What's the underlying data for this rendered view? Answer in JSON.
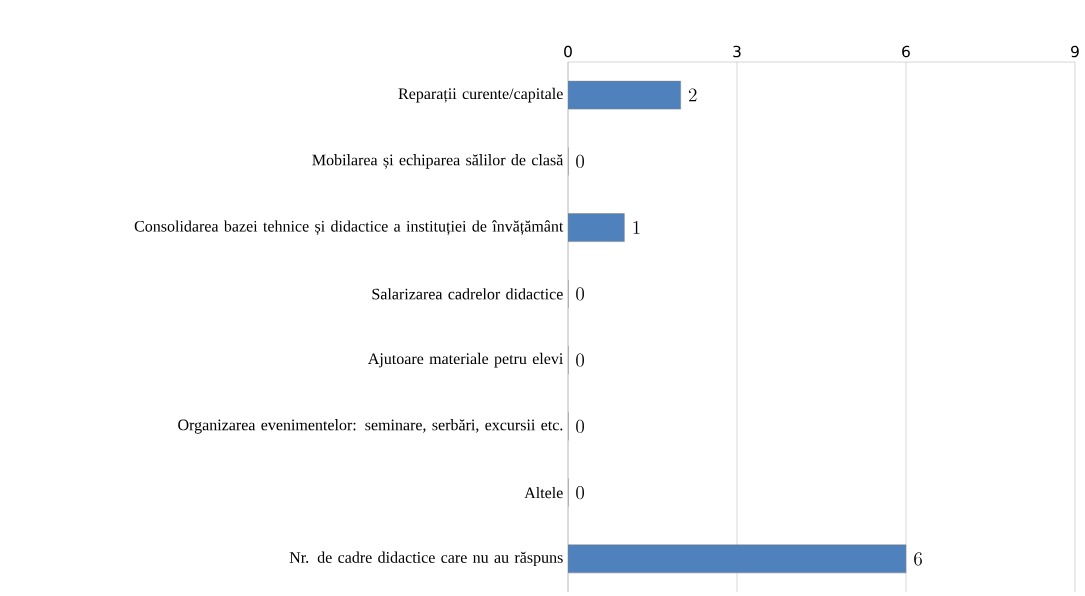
{
  "chart_data": {
    "type": "bar",
    "orientation": "horizontal",
    "categories": [
      "Reparații curente/capitale",
      "Mobilarea și echiparea sălilor de clasă",
      "Consolidarea bazei tehnice și didactice a instituției de învățământ",
      "Salarizarea cadrelor didactice",
      "Ajutoare materiale petru elevi",
      "Organizarea evenimentelor: seminare, serbări, excursii etc.",
      "Altele",
      "Nr. de cadre didactice care nu au răspuns"
    ],
    "values": [
      2,
      0,
      1,
      0,
      0,
      0,
      0,
      6
    ],
    "color": "#4f81bd",
    "xlim": [
      0,
      9
    ],
    "xticks": [
      0,
      3,
      6,
      9
    ],
    "grid": "x",
    "data_labels": true
  }
}
